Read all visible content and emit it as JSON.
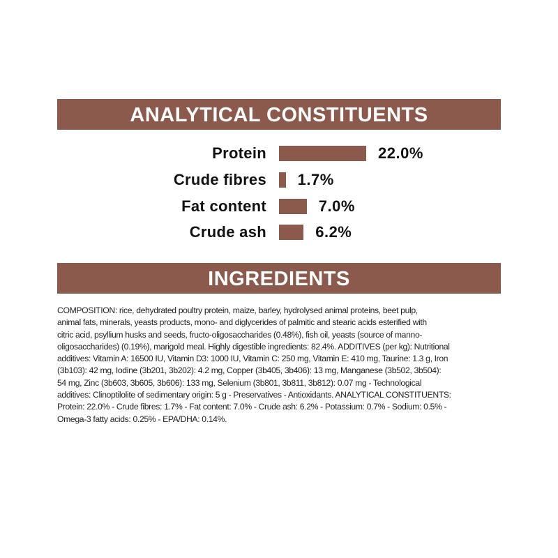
{
  "analytical": {
    "title": "ANALYTICAL CONSTITUENTS",
    "bar_color": "#8b5a4c",
    "items": [
      {
        "label": "Protein",
        "value": 22.0,
        "display": "22.0%"
      },
      {
        "label": "Crude fibres",
        "value": 1.7,
        "display": "1.7%"
      },
      {
        "label": "Fat content",
        "value": 7.0,
        "display": "7.0%"
      },
      {
        "label": "Crude ash",
        "value": 6.2,
        "display": "6.2%"
      }
    ]
  },
  "ingredients": {
    "title": "INGREDIENTS",
    "lines": [
      "COMPOSITION: rice, dehydrated poultry protein, maize, barley, hydrolysed animal proteins, beet pulp,",
      "animal fats, minerals, yeasts products, mono- and diglycerides of palmitic and stearic acids esterified with",
      "citric acid, psyllium husks and seeds, fructo-oligosaccharides (0.48%), fish oil, yeasts (source of manno-",
      "oligosaccharides) (0.19%), marigold meal. Highly digestible ingredients: 82.4%. ADDITIVES (per kg): Nutritional",
      "additives: Vitamin A: 16500 IU, Vitamin D3: 1000 IU, Vitamin C: 250 mg, Vitamin E: 410 mg, Taurine: 1.3 g, Iron",
      "(3b103): 42 mg, Iodine (3b201, 3b202): 4.2 mg, Copper (3b405, 3b406): 13 mg, Manganese (3b502, 3b504):",
      "54 mg, Zinc (3b603, 3b605, 3b606): 133 mg, Selenium (3b801, 3b811, 3b812): 0.07 mg - Technological",
      "additives: Clinoptilolite of sedimentary origin: 5 g - Preservatives - Antioxidants. ANALYTICAL CONSTITUENTS:",
      "Protein: 22.0% - Crude fibres: 1.7% - Fat content: 7.0% - Crude ash: 6.2% - Potassium: 0.7% - Sodium: 0.5% -",
      "Omega-3 fatty acids: 0.25% - EPA/DHA: 0.14%."
    ]
  }
}
